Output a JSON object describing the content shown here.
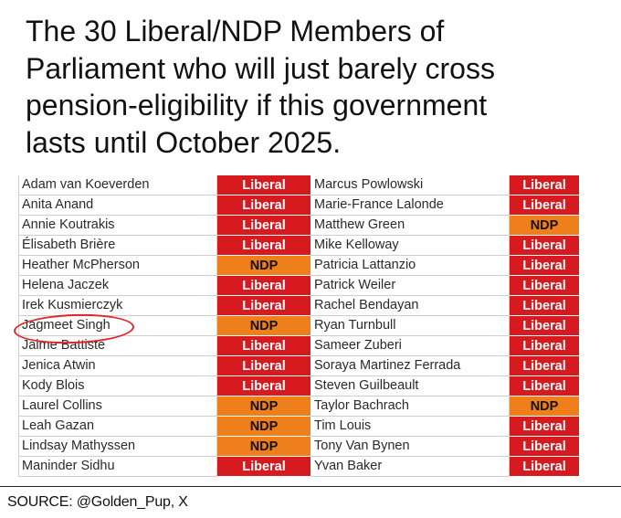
{
  "headline": {
    "lines": [
      "The 30 Liberal/NDP Members of",
      "Parliament who will just barely cross",
      "pension-eligibility if this government",
      "lasts until October 2025."
    ]
  },
  "colors": {
    "liberal": "#d71920",
    "ndp": "#ef7f1a",
    "highlight_circle": "#e0262d"
  },
  "table": {
    "left": [
      {
        "name": "Adam van Koeverden",
        "party": "Liberal"
      },
      {
        "name": "Anita Anand",
        "party": "Liberal"
      },
      {
        "name": "Annie Koutrakis",
        "party": "Liberal"
      },
      {
        "name": "Élisabeth Brière",
        "party": "Liberal"
      },
      {
        "name": "Heather McPherson",
        "party": "NDP"
      },
      {
        "name": "Helena Jaczek",
        "party": "Liberal"
      },
      {
        "name": "Irek Kusmierczyk",
        "party": "Liberal"
      },
      {
        "name": "Jagmeet Singh",
        "party": "NDP"
      },
      {
        "name": "Jaime Battiste",
        "party": "Liberal"
      },
      {
        "name": "Jenica Atwin",
        "party": "Liberal"
      },
      {
        "name": "Kody Blois",
        "party": "Liberal"
      },
      {
        "name": "Laurel Collins",
        "party": "NDP"
      },
      {
        "name": "Leah Gazan",
        "party": "NDP"
      },
      {
        "name": "Lindsay Mathyssen",
        "party": "NDP"
      },
      {
        "name": "Maninder Sidhu",
        "party": "Liberal"
      }
    ],
    "right": [
      {
        "name": "Marcus Powlowski",
        "party": "Liberal"
      },
      {
        "name": "Marie-France Lalonde",
        "party": "Liberal"
      },
      {
        "name": "Matthew Green",
        "party": "NDP"
      },
      {
        "name": "Mike Kelloway",
        "party": "Liberal"
      },
      {
        "name": "Patricia Lattanzio",
        "party": "Liberal"
      },
      {
        "name": "Patrick Weiler",
        "party": "Liberal"
      },
      {
        "name": "Rachel Bendayan",
        "party": "Liberal"
      },
      {
        "name": "Ryan Turnbull",
        "party": "Liberal"
      },
      {
        "name": "Sameer Zuberi",
        "party": "Liberal"
      },
      {
        "name": "Soraya Martinez Ferrada",
        "party": "Liberal"
      },
      {
        "name": "Steven Guilbeault",
        "party": "Liberal"
      },
      {
        "name": "Taylor Bachrach",
        "party": "NDP"
      },
      {
        "name": "Tim Louis",
        "party": "Liberal"
      },
      {
        "name": "Tony Van Bynen",
        "party": "Liberal"
      },
      {
        "name": "Yvan Baker",
        "party": "Liberal"
      }
    ]
  },
  "source": "SOURCE: @Golden_Pup, X"
}
